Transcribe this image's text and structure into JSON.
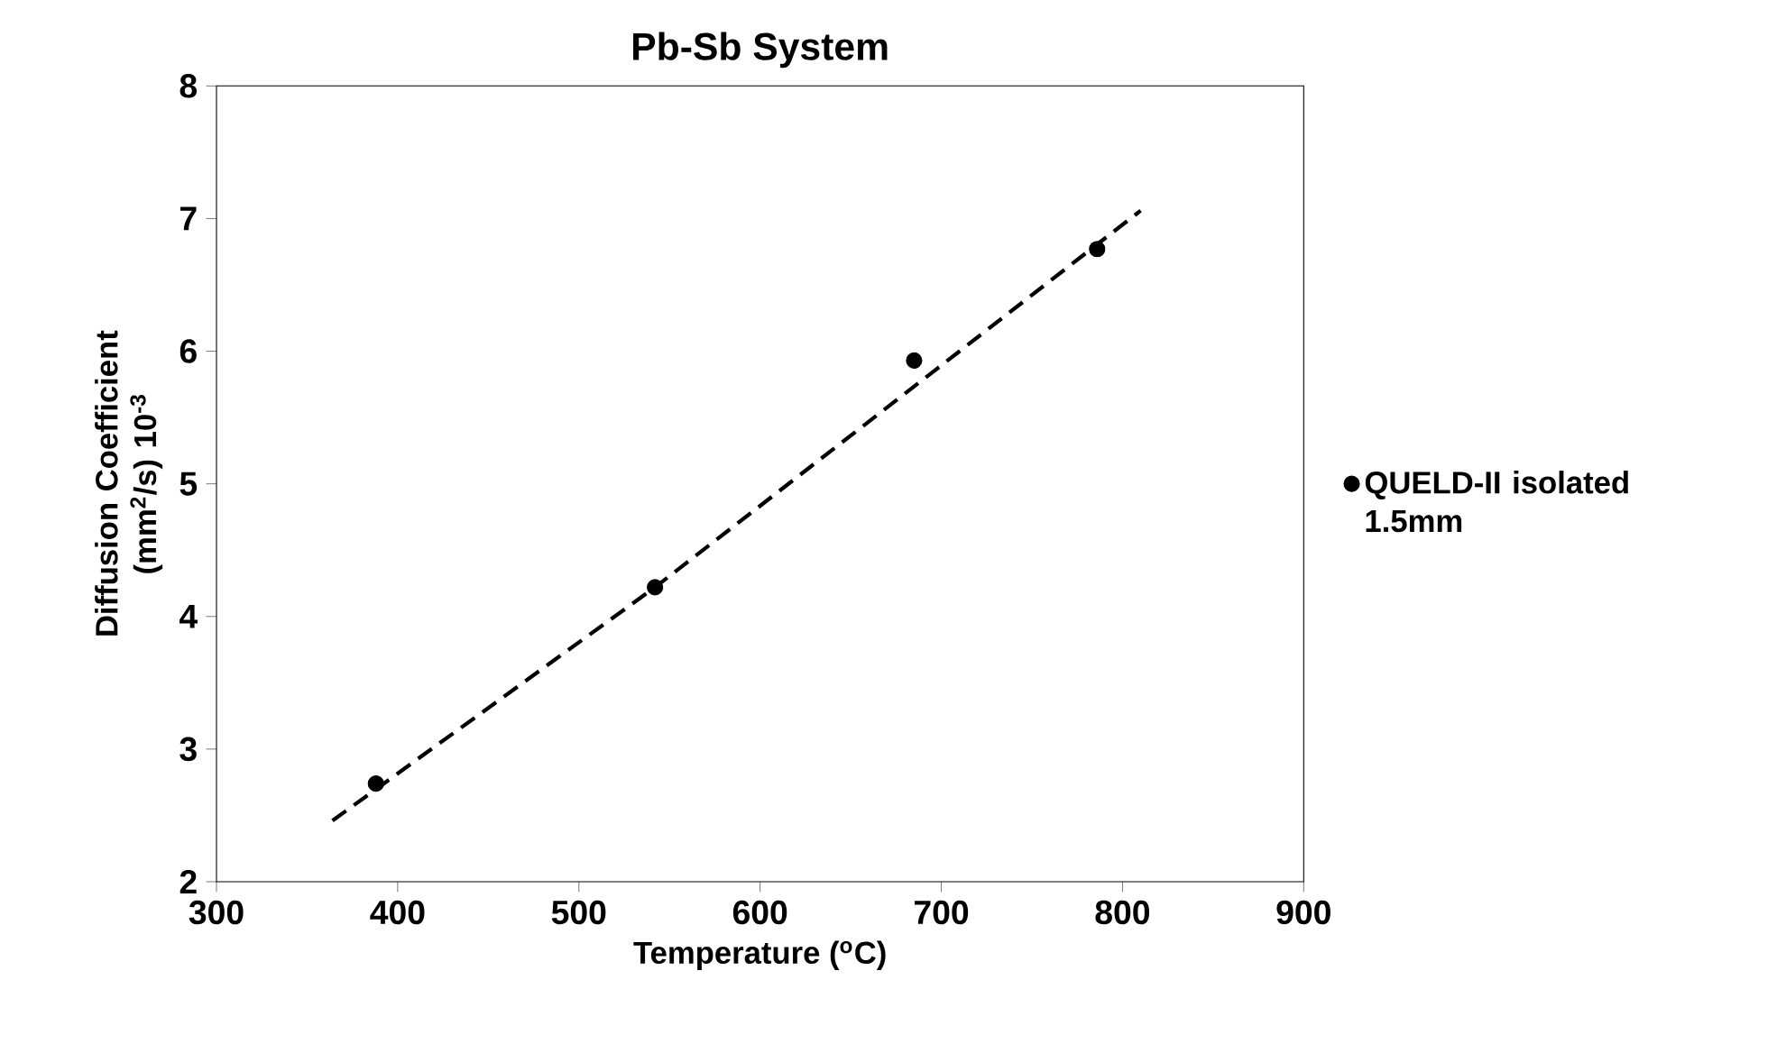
{
  "chart_data": {
    "type": "scatter",
    "title": "Pb-Sb System",
    "xlabel": "Temperature ($^{o}$C)",
    "ylabel": "Diffusion Coefficient (mm$^{2}$/s) 10$^{-3}$",
    "xlim": [
      300,
      900
    ],
    "ylim": [
      2,
      8
    ],
    "xticks": [
      300,
      400,
      500,
      600,
      700,
      800,
      900
    ],
    "yticks": [
      2,
      3,
      4,
      5,
      6,
      7,
      8
    ],
    "series": [
      {
        "name": "QUELD-II isolated 1.5mm",
        "color": "#000000",
        "marker": "circle",
        "x": [
          388,
          542,
          685,
          786
        ],
        "values": [
          2.74,
          4.22,
          5.93,
          6.77
        ]
      },
      {
        "type": "line",
        "color": "#000000",
        "line_style": "dashed",
        "marker": "none",
        "x": [
          364,
          542,
          695,
          810
        ],
        "values": [
          2.46,
          4.22,
          5.84,
          7.06
        ]
      }
    ],
    "legend": "right",
    "grid": false
  }
}
